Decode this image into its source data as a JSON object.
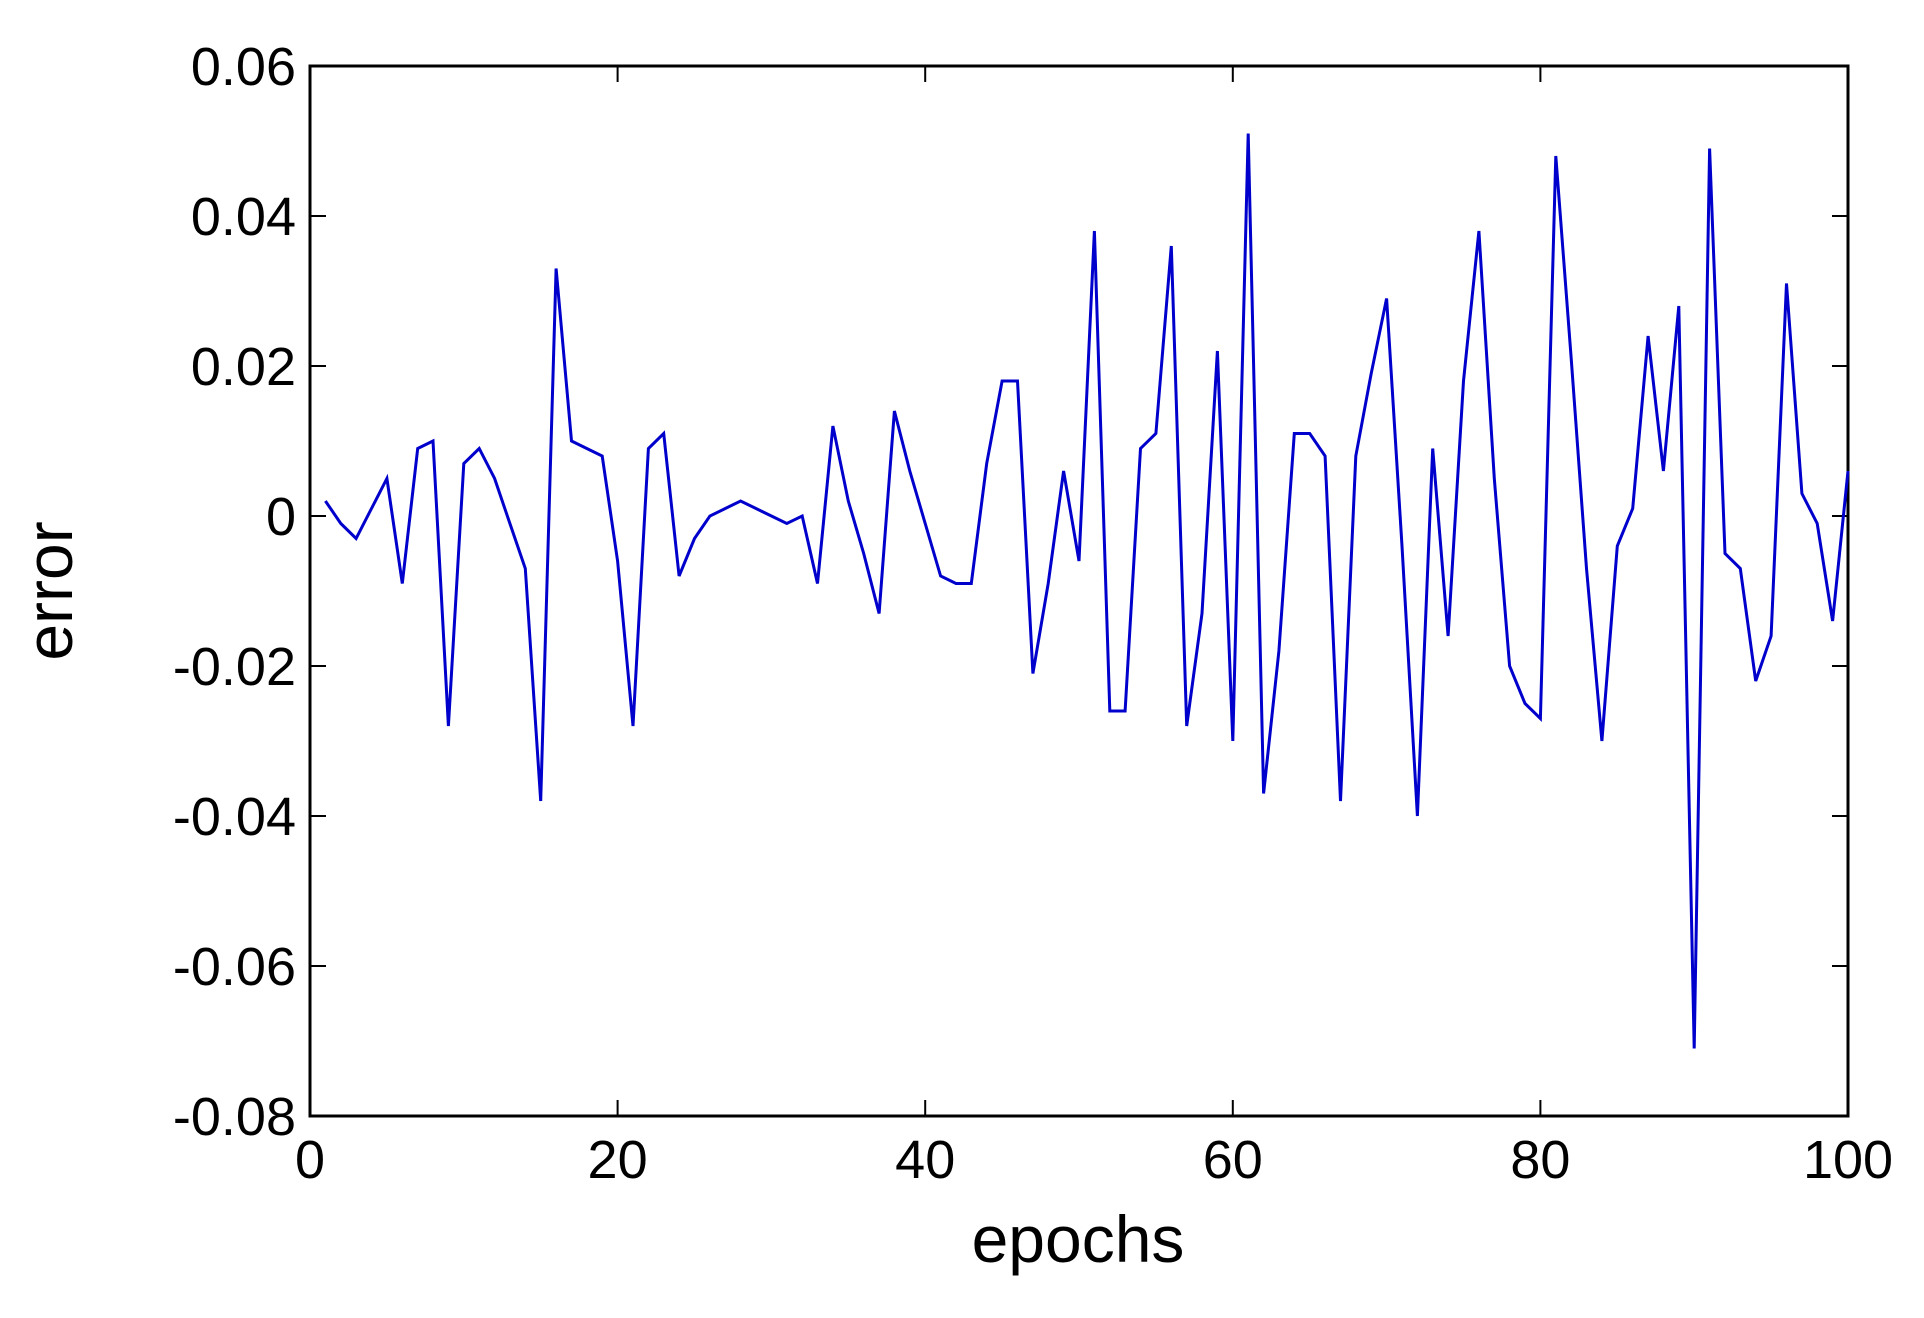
{
  "chart_data": {
    "type": "line",
    "title": "",
    "xlabel": "epochs",
    "ylabel": "error",
    "xlim": [
      0,
      100
    ],
    "ylim": [
      -0.08,
      0.06
    ],
    "xticks": [
      0,
      20,
      40,
      60,
      80,
      100
    ],
    "xtick_labels": [
      "0",
      "20",
      "40",
      "60",
      "80",
      "100"
    ],
    "yticks": [
      0.06,
      0.04,
      0.02,
      0,
      -0.02,
      -0.04,
      -0.06,
      -0.08
    ],
    "ytick_labels": [
      "0.06",
      "0.04",
      "0.02",
      "0",
      "-0.02",
      "-0.04",
      "-0.06",
      "-0.08"
    ],
    "grid": false,
    "series": [
      {
        "color": "#0000cc",
        "x": [
          1,
          2,
          3,
          4,
          5,
          6,
          7,
          8,
          9,
          10,
          11,
          12,
          13,
          14,
          15,
          16,
          17,
          18,
          19,
          20,
          21,
          22,
          23,
          24,
          25,
          26,
          27,
          28,
          29,
          30,
          31,
          32,
          33,
          34,
          35,
          36,
          37,
          38,
          39,
          40,
          41,
          42,
          43,
          44,
          45,
          46,
          47,
          48,
          49,
          50,
          51,
          52,
          53,
          54,
          55,
          56,
          57,
          58,
          59,
          60,
          61,
          62,
          63,
          64,
          65,
          66,
          67,
          68,
          69,
          70,
          71,
          72,
          73,
          74,
          75,
          76,
          77,
          78,
          79,
          80,
          81,
          82,
          83,
          84,
          85,
          86,
          87,
          88,
          89,
          90,
          91,
          92,
          93,
          94,
          95,
          96,
          97,
          98,
          99,
          100
        ],
        "y": [
          0.002,
          -0.001,
          -0.003,
          0.001,
          0.005,
          -0.009,
          0.009,
          0.01,
          -0.028,
          0.007,
          0.009,
          0.005,
          -0.001,
          -0.007,
          -0.038,
          0.033,
          0.01,
          0.009,
          0.008,
          -0.006,
          -0.028,
          0.009,
          0.011,
          -0.008,
          -0.003,
          0.0,
          0.001,
          0.002,
          0.001,
          0.0,
          -0.001,
          0.0,
          -0.009,
          0.012,
          0.002,
          -0.005,
          -0.013,
          0.014,
          0.006,
          -0.001,
          -0.008,
          -0.009,
          -0.009,
          0.007,
          0.018,
          0.018,
          -0.021,
          -0.009,
          0.006,
          -0.006,
          0.038,
          -0.026,
          -0.026,
          0.009,
          0.011,
          0.036,
          -0.028,
          -0.013,
          0.022,
          -0.03,
          0.051,
          -0.037,
          -0.018,
          0.011,
          0.011,
          0.008,
          -0.038,
          0.008,
          0.019,
          0.029,
          -0.004,
          -0.04,
          0.009,
          -0.016,
          0.018,
          0.038,
          0.005,
          -0.02,
          -0.025,
          -0.027,
          0.048,
          0.021,
          -0.007,
          -0.03,
          -0.004,
          0.001,
          0.024,
          0.006,
          0.028,
          -0.071,
          0.049,
          -0.005,
          -0.007,
          -0.022,
          -0.016,
          0.031,
          0.003,
          -0.001,
          -0.014,
          0.006
        ]
      }
    ]
  }
}
